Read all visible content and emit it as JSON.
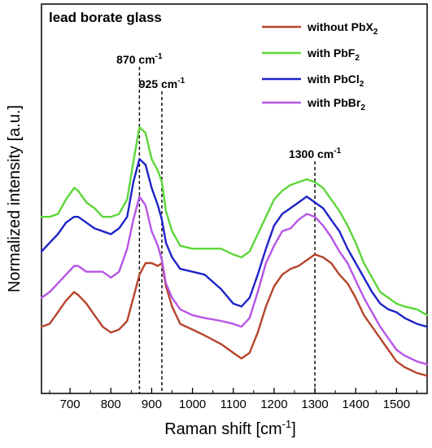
{
  "chart_data": {
    "type": "line",
    "title": "lead borate glass",
    "xlabel": "Raman shift [cm",
    "xlabel_sup": "-1",
    "xlabel_end": "]",
    "ylabel": "Normalized intensity [a.u.]",
    "xlim": [
      630,
      1575
    ],
    "ylim": [
      0,
      1
    ],
    "xticks": [
      700,
      800,
      900,
      1000,
      1100,
      1200,
      1300,
      1400,
      1500
    ],
    "grid": false,
    "legend_position": "top-right",
    "series": [
      {
        "name": "without PbX",
        "name_sub": "2",
        "color": "#b5442a",
        "x": [
          630,
          650,
          670,
          690,
          710,
          720,
          740,
          760,
          780,
          800,
          820,
          840,
          855,
          870,
          885,
          900,
          915,
          925,
          935,
          950,
          970,
          1000,
          1030,
          1070,
          1100,
          1120,
          1140,
          1160,
          1180,
          1200,
          1220,
          1240,
          1260,
          1280,
          1300,
          1320,
          1340,
          1360,
          1380,
          1400,
          1420,
          1440,
          1460,
          1480,
          1500,
          1520,
          1550,
          1575
        ],
        "y": [
          0.18,
          0.19,
          0.23,
          0.27,
          0.3,
          0.29,
          0.26,
          0.22,
          0.18,
          0.16,
          0.17,
          0.2,
          0.28,
          0.36,
          0.4,
          0.4,
          0.39,
          0.4,
          0.32,
          0.25,
          0.19,
          0.17,
          0.15,
          0.12,
          0.09,
          0.07,
          0.09,
          0.16,
          0.25,
          0.32,
          0.36,
          0.38,
          0.39,
          0.41,
          0.43,
          0.42,
          0.4,
          0.36,
          0.33,
          0.28,
          0.22,
          0.18,
          0.14,
          0.1,
          0.06,
          0.04,
          0.02,
          0.01
        ]
      },
      {
        "name": "with PbF",
        "name_sub": "2",
        "color": "#5cd63a",
        "x": [
          630,
          650,
          670,
          690,
          710,
          720,
          740,
          760,
          780,
          800,
          820,
          840,
          855,
          870,
          885,
          900,
          915,
          925,
          935,
          950,
          970,
          1000,
          1030,
          1070,
          1100,
          1120,
          1140,
          1160,
          1180,
          1200,
          1220,
          1240,
          1260,
          1280,
          1300,
          1320,
          1340,
          1360,
          1380,
          1400,
          1420,
          1440,
          1460,
          1480,
          1500,
          1520,
          1550,
          1575
        ],
        "y": [
          0.56,
          0.56,
          0.57,
          0.62,
          0.66,
          0.65,
          0.61,
          0.59,
          0.56,
          0.56,
          0.57,
          0.62,
          0.75,
          0.87,
          0.85,
          0.76,
          0.72,
          0.68,
          0.58,
          0.51,
          0.46,
          0.45,
          0.45,
          0.45,
          0.43,
          0.42,
          0.44,
          0.5,
          0.56,
          0.62,
          0.65,
          0.67,
          0.68,
          0.69,
          0.68,
          0.66,
          0.62,
          0.58,
          0.53,
          0.47,
          0.4,
          0.35,
          0.3,
          0.28,
          0.26,
          0.25,
          0.24,
          0.22
        ]
      },
      {
        "name": "with PbCl",
        "name_sub": "2",
        "color": "#1e22c8",
        "x": [
          630,
          650,
          670,
          690,
          710,
          720,
          740,
          760,
          780,
          800,
          820,
          840,
          855,
          870,
          885,
          900,
          915,
          925,
          935,
          950,
          970,
          1000,
          1030,
          1070,
          1100,
          1120,
          1140,
          1160,
          1180,
          1200,
          1220,
          1240,
          1260,
          1280,
          1300,
          1320,
          1340,
          1360,
          1380,
          1400,
          1420,
          1440,
          1460,
          1480,
          1500,
          1520,
          1550,
          1575
        ],
        "y": [
          0.44,
          0.47,
          0.5,
          0.54,
          0.56,
          0.56,
          0.54,
          0.52,
          0.51,
          0.5,
          0.52,
          0.56,
          0.68,
          0.76,
          0.74,
          0.66,
          0.6,
          0.55,
          0.47,
          0.42,
          0.38,
          0.37,
          0.36,
          0.31,
          0.26,
          0.25,
          0.28,
          0.36,
          0.45,
          0.53,
          0.57,
          0.59,
          0.61,
          0.63,
          0.61,
          0.59,
          0.55,
          0.51,
          0.45,
          0.4,
          0.35,
          0.3,
          0.26,
          0.24,
          0.23,
          0.21,
          0.19,
          0.18
        ]
      },
      {
        "name": "with PbBr",
        "name_sub": "2",
        "color": "#b655e6",
        "x": [
          630,
          650,
          670,
          690,
          710,
          720,
          740,
          760,
          780,
          800,
          820,
          840,
          855,
          870,
          885,
          900,
          915,
          925,
          935,
          950,
          970,
          1000,
          1030,
          1070,
          1100,
          1120,
          1140,
          1160,
          1180,
          1200,
          1220,
          1240,
          1260,
          1280,
          1300,
          1320,
          1340,
          1360,
          1380,
          1400,
          1420,
          1440,
          1460,
          1480,
          1500,
          1520,
          1550,
          1575
        ],
        "y": [
          0.28,
          0.3,
          0.33,
          0.36,
          0.39,
          0.39,
          0.37,
          0.37,
          0.37,
          0.35,
          0.37,
          0.45,
          0.55,
          0.63,
          0.6,
          0.51,
          0.46,
          0.41,
          0.33,
          0.28,
          0.24,
          0.22,
          0.21,
          0.2,
          0.19,
          0.18,
          0.21,
          0.3,
          0.4,
          0.46,
          0.51,
          0.52,
          0.55,
          0.57,
          0.56,
          0.53,
          0.49,
          0.44,
          0.4,
          0.34,
          0.28,
          0.23,
          0.18,
          0.14,
          0.1,
          0.08,
          0.06,
          0.05
        ]
      }
    ],
    "annotations": [
      {
        "x": 870,
        "label": "870 cm",
        "sup": "-1"
      },
      {
        "x": 925,
        "label": "925 cm",
        "sup": "-1"
      },
      {
        "x": 1300,
        "label": "1300 cm",
        "sup": "-1"
      }
    ]
  }
}
